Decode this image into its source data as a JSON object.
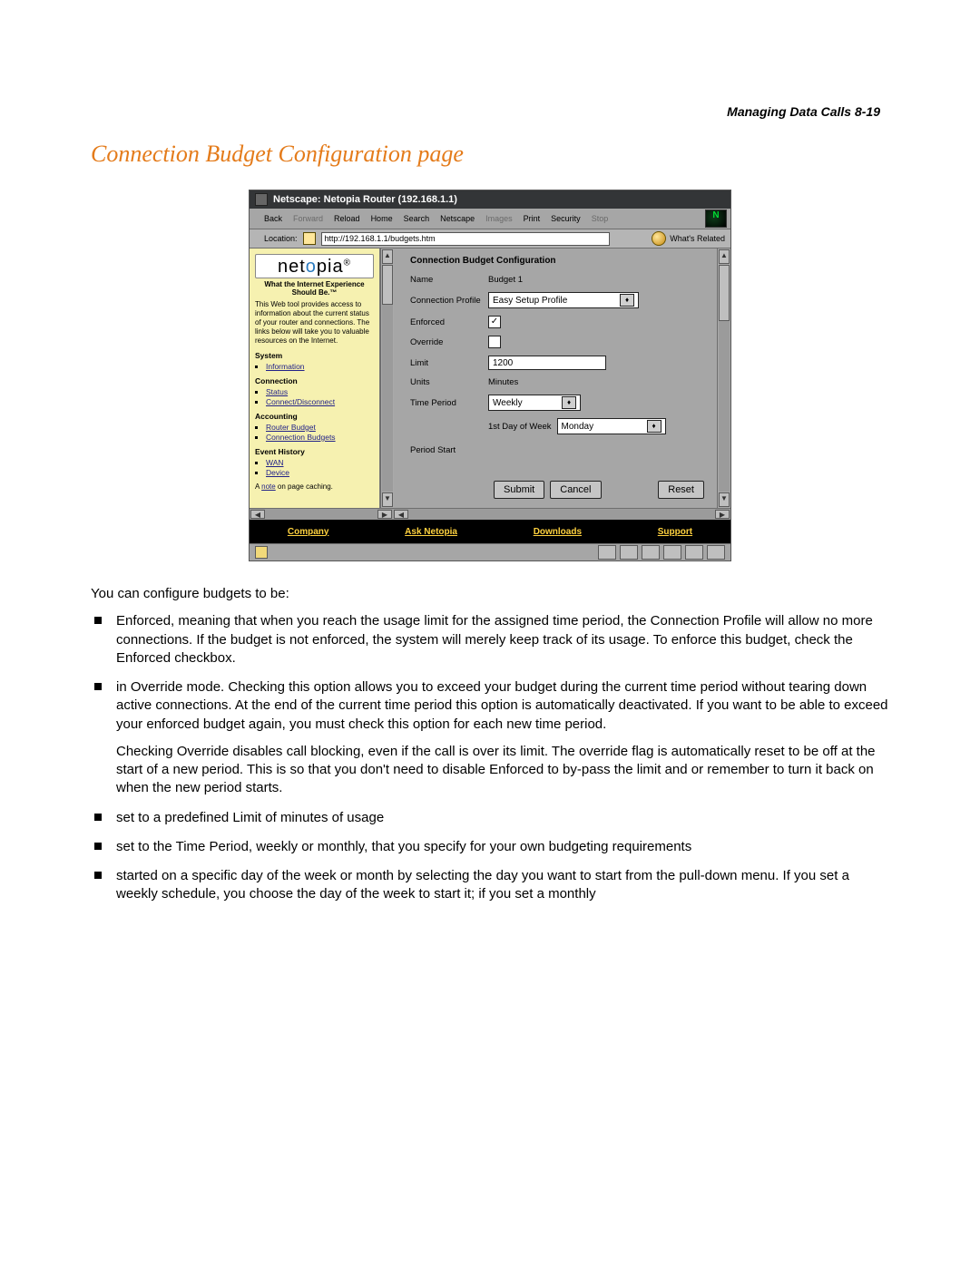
{
  "page_header": {
    "running_head": "Managing Data Calls  8-19",
    "title": "Connection Budget Configuration page"
  },
  "screenshot": {
    "window_title": "Netscape: Netopia Router (192.168.1.1)",
    "toolbar": [
      {
        "label": "Back",
        "enabled": true
      },
      {
        "label": "Forward",
        "enabled": false
      },
      {
        "label": "Reload",
        "enabled": true
      },
      {
        "label": "Home",
        "enabled": true
      },
      {
        "label": "Search",
        "enabled": true
      },
      {
        "label": "Netscape",
        "enabled": true
      },
      {
        "label": "Images",
        "enabled": false
      },
      {
        "label": "Print",
        "enabled": true
      },
      {
        "label": "Security",
        "enabled": true
      },
      {
        "label": "Stop",
        "enabled": false
      }
    ],
    "location": {
      "label": "Location:",
      "url": "http://192.168.1.1/budgets.htm",
      "related_label": "What's Related"
    },
    "sidebar": {
      "brand": "netopia",
      "tagline": "What the Internet Experience Should Be.™",
      "blurb": "This Web tool provides access to information about the current status of your router and connections. The links below will take you to valuable resources on the Internet.",
      "sections": [
        {
          "title": "System",
          "items": [
            {
              "label": "Information",
              "href": true
            }
          ]
        },
        {
          "title": "Connection",
          "items": [
            {
              "label": "Status",
              "href": true
            },
            {
              "label": "Connect/Disconnect",
              "href": true
            }
          ]
        },
        {
          "title": "Accounting",
          "items": [
            {
              "label": "Router Budget",
              "href": true
            },
            {
              "label": "Connection Budgets",
              "href": true
            }
          ]
        },
        {
          "title": "Event History",
          "items": [
            {
              "label": "WAN",
              "href": true
            },
            {
              "label": "Device",
              "href": true
            }
          ]
        }
      ],
      "cache_note_prefix": "A ",
      "cache_note_link": "note",
      "cache_note_suffix": " on page caching."
    },
    "form": {
      "heading": "Connection Budget Configuration",
      "fields": {
        "name": {
          "label": "Name",
          "value": "Budget 1"
        },
        "connection_profile": {
          "label": "Connection Profile",
          "value": "Easy Setup Profile"
        },
        "enforced": {
          "label": "Enforced",
          "checked": true
        },
        "override": {
          "label": "Override",
          "checked": false
        },
        "limit": {
          "label": "Limit",
          "value": "1200"
        },
        "units": {
          "label": "Units",
          "value": "Minutes"
        },
        "time_period": {
          "label": "Time Period",
          "value": "Weekly"
        },
        "first_day": {
          "label": "1st Day of Week",
          "value": "Monday"
        },
        "period_start": {
          "label": "Period Start",
          "value": ""
        }
      },
      "buttons": {
        "submit": "Submit",
        "cancel": "Cancel",
        "reset": "Reset"
      }
    },
    "footer_links": [
      "Company",
      "Ask Netopia",
      "Downloads",
      "Support"
    ]
  },
  "body": {
    "intro": "You can configure budgets to be:",
    "bullets": [
      {
        "text": "Enforced, meaning that when you reach the usage limit for the assigned time period, the Connection Profile will allow no more connections. If the budget is not enforced, the system will merely keep track of its usage. To enforce this budget, check the Enforced checkbox."
      },
      {
        "text": "in Override mode. Checking this option allows you to exceed your budget during the current time period without tearing down active connections. At the end of the current time period this option is automatically deactivated. If you want to be able to exceed your enforced budget again, you must check this option for each new time period.",
        "sub": "Checking Override disables call blocking, even if the call is over its limit. The override flag is automatically reset to be off at the start of a new period. This is so that you don't need to disable Enforced to by-pass the limit and or remember to turn it back on when the new period starts."
      },
      {
        "text": "set to a predefined Limit of minutes of usage"
      },
      {
        "text": "set to the Time Period, weekly or monthly, that you specify for your own budgeting requirements"
      },
      {
        "text": "started on a specific day of the week or month by selecting the day you want to start from the pull-down menu. If you set a weekly schedule, you choose the day of the week to start it; if you set a monthly"
      }
    ]
  },
  "style": {
    "title_color": "#e47b1a",
    "sidebar_bg": "#f6f1b0",
    "panel_bg": "#a6a6a6",
    "footer_bg": "#000000",
    "footer_link_color": "#ffd23f"
  }
}
